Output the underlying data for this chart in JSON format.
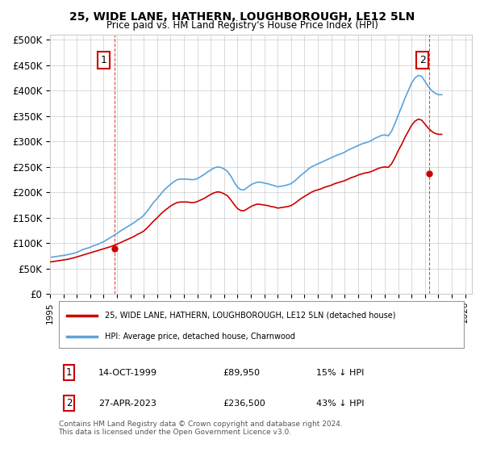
{
  "title1": "25, WIDE LANE, HATHERN, LOUGHBOROUGH, LE12 5LN",
  "title2": "Price paid vs. HM Land Registry's House Price Index (HPI)",
  "ylabel_ticks": [
    "£0",
    "£50K",
    "£100K",
    "£150K",
    "£200K",
    "£250K",
    "£300K",
    "£350K",
    "£400K",
    "£450K",
    "£500K"
  ],
  "ytick_vals": [
    0,
    50000,
    100000,
    150000,
    200000,
    250000,
    300000,
    350000,
    400000,
    450000,
    500000
  ],
  "xlim_start": 1995.0,
  "xlim_end": 2026.5,
  "ylim": [
    0,
    510000
  ],
  "hpi_color": "#5ba3d9",
  "price_color": "#cc0000",
  "marker1_date": 1999.79,
  "marker1_price": 89950,
  "marker1_label": "1",
  "marker2_date": 2023.32,
  "marker2_price": 236500,
  "marker2_label": "2",
  "legend_line1": "25, WIDE LANE, HATHERN, LOUGHBOROUGH, LE12 5LN (detached house)",
  "legend_line2": "HPI: Average price, detached house, Charnwood",
  "table_row1": [
    "1",
    "14-OCT-1999",
    "£89,950",
    "15% ↓ HPI"
  ],
  "table_row2": [
    "2",
    "27-APR-2023",
    "£236,500",
    "43% ↓ HPI"
  ],
  "footer": "Contains HM Land Registry data © Crown copyright and database right 2024.\nThis data is licensed under the Open Government Licence v3.0.",
  "bg_color": "#ffffff",
  "grid_color": "#cccccc",
  "hpi_data_x": [
    1995.0,
    1995.25,
    1995.5,
    1995.75,
    1996.0,
    1996.25,
    1996.5,
    1996.75,
    1997.0,
    1997.25,
    1997.5,
    1997.75,
    1998.0,
    1998.25,
    1998.5,
    1998.75,
    1999.0,
    1999.25,
    1999.5,
    1999.75,
    2000.0,
    2000.25,
    2000.5,
    2000.75,
    2001.0,
    2001.25,
    2001.5,
    2001.75,
    2002.0,
    2002.25,
    2002.5,
    2002.75,
    2003.0,
    2003.25,
    2003.5,
    2003.75,
    2004.0,
    2004.25,
    2004.5,
    2004.75,
    2005.0,
    2005.25,
    2005.5,
    2005.75,
    2006.0,
    2006.25,
    2006.5,
    2006.75,
    2007.0,
    2007.25,
    2007.5,
    2007.75,
    2008.0,
    2008.25,
    2008.5,
    2008.75,
    2009.0,
    2009.25,
    2009.5,
    2009.75,
    2010.0,
    2010.25,
    2010.5,
    2010.75,
    2011.0,
    2011.25,
    2011.5,
    2011.75,
    2012.0,
    2012.25,
    2012.5,
    2012.75,
    2013.0,
    2013.25,
    2013.5,
    2013.75,
    2014.0,
    2014.25,
    2014.5,
    2014.75,
    2015.0,
    2015.25,
    2015.5,
    2015.75,
    2016.0,
    2016.25,
    2016.5,
    2016.75,
    2017.0,
    2017.25,
    2017.5,
    2017.75,
    2018.0,
    2018.25,
    2018.5,
    2018.75,
    2019.0,
    2019.25,
    2019.5,
    2019.75,
    2020.0,
    2020.25,
    2020.5,
    2020.75,
    2021.0,
    2021.25,
    2021.5,
    2021.75,
    2022.0,
    2022.25,
    2022.5,
    2022.75,
    2023.0,
    2023.25,
    2023.5,
    2023.75,
    2024.0,
    2024.25
  ],
  "hpi_data_y": [
    72000,
    73000,
    74000,
    75000,
    76000,
    77000,
    78500,
    80000,
    82000,
    85000,
    88000,
    90000,
    92000,
    95000,
    97000,
    100000,
    103000,
    107000,
    111000,
    115000,
    119000,
    124000,
    128000,
    132000,
    136000,
    140000,
    145000,
    149000,
    155000,
    163000,
    172000,
    181000,
    188000,
    196000,
    204000,
    210000,
    216000,
    221000,
    225000,
    226000,
    226000,
    226000,
    225000,
    225000,
    227000,
    231000,
    235000,
    240000,
    244000,
    248000,
    250000,
    249000,
    246000,
    241000,
    232000,
    220000,
    210000,
    205000,
    205000,
    210000,
    215000,
    218000,
    220000,
    220000,
    218000,
    217000,
    215000,
    213000,
    211000,
    212000,
    213000,
    215000,
    217000,
    222000,
    228000,
    234000,
    239000,
    245000,
    250000,
    253000,
    256000,
    259000,
    262000,
    265000,
    268000,
    271000,
    274000,
    276000,
    279000,
    283000,
    286000,
    289000,
    292000,
    295000,
    297000,
    299000,
    302000,
    306000,
    309000,
    312000,
    313000,
    311000,
    320000,
    335000,
    352000,
    368000,
    385000,
    400000,
    415000,
    425000,
    430000,
    428000,
    418000,
    408000,
    400000,
    395000,
    392000,
    392000
  ],
  "price_data_x": [
    1995.0,
    1995.25,
    1995.5,
    1995.75,
    1996.0,
    1996.25,
    1996.5,
    1996.75,
    1997.0,
    1997.25,
    1997.5,
    1997.75,
    1998.0,
    1998.25,
    1998.5,
    1998.75,
    1999.0,
    1999.25,
    1999.5,
    1999.75,
    2000.0,
    2000.25,
    2000.5,
    2000.75,
    2001.0,
    2001.25,
    2001.5,
    2001.75,
    2002.0,
    2002.25,
    2002.5,
    2002.75,
    2003.0,
    2003.25,
    2003.5,
    2003.75,
    2004.0,
    2004.25,
    2004.5,
    2004.75,
    2005.0,
    2005.25,
    2005.5,
    2005.75,
    2006.0,
    2006.25,
    2006.5,
    2006.75,
    2007.0,
    2007.25,
    2007.5,
    2007.75,
    2008.0,
    2008.25,
    2008.5,
    2008.75,
    2009.0,
    2009.25,
    2009.5,
    2009.75,
    2010.0,
    2010.25,
    2010.5,
    2010.75,
    2011.0,
    2011.25,
    2011.5,
    2011.75,
    2012.0,
    2012.25,
    2012.5,
    2012.75,
    2013.0,
    2013.25,
    2013.5,
    2013.75,
    2014.0,
    2014.25,
    2014.5,
    2014.75,
    2015.0,
    2015.25,
    2015.5,
    2015.75,
    2016.0,
    2016.25,
    2016.5,
    2016.75,
    2017.0,
    2017.25,
    2017.5,
    2017.75,
    2018.0,
    2018.25,
    2018.5,
    2018.75,
    2019.0,
    2019.25,
    2019.5,
    2019.75,
    2020.0,
    2020.25,
    2020.5,
    2020.75,
    2021.0,
    2021.25,
    2021.5,
    2021.75,
    2022.0,
    2022.25,
    2022.5,
    2022.75,
    2023.0,
    2023.25,
    2023.5,
    2023.75,
    2024.0,
    2024.25
  ],
  "price_data_y": [
    63000,
    64000,
    65000,
    66000,
    67000,
    68000,
    69500,
    71000,
    73000,
    75000,
    77000,
    79000,
    81000,
    83000,
    85000,
    87000,
    89000,
    91000,
    93000,
    95500,
    98000,
    101000,
    104000,
    107000,
    110000,
    113000,
    117000,
    120000,
    124000,
    130000,
    137000,
    144000,
    150000,
    157000,
    163000,
    168000,
    173000,
    177000,
    180000,
    181000,
    181000,
    181000,
    180000,
    180000,
    182000,
    185000,
    188000,
    192000,
    196000,
    199000,
    201000,
    200000,
    197000,
    193000,
    185000,
    176000,
    168000,
    164000,
    164000,
    168000,
    172000,
    175000,
    177000,
    176000,
    175000,
    174000,
    172000,
    171000,
    169000,
    170000,
    171000,
    172000,
    174000,
    178000,
    183000,
    188000,
    192000,
    196000,
    200000,
    203000,
    205000,
    207000,
    210000,
    212000,
    214000,
    217000,
    219000,
    221000,
    223000,
    226000,
    229000,
    231000,
    234000,
    236000,
    238000,
    239000,
    241000,
    244000,
    247000,
    249000,
    250000,
    249000,
    256000,
    268000,
    282000,
    294000,
    308000,
    320000,
    332000,
    340000,
    344000,
    342000,
    334000,
    326000,
    320000,
    316000,
    314000,
    314000
  ]
}
